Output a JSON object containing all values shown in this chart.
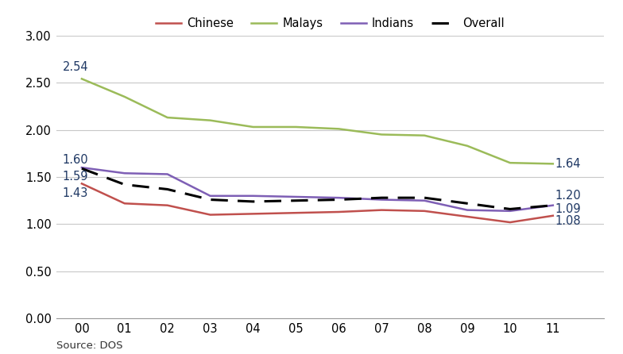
{
  "years": [
    0,
    1,
    2,
    3,
    4,
    5,
    6,
    7,
    8,
    9,
    10,
    11
  ],
  "year_labels": [
    "00",
    "01",
    "02",
    "03",
    "04",
    "05",
    "06",
    "07",
    "08",
    "09",
    "10",
    "11"
  ],
  "chinese": [
    1.43,
    1.22,
    1.2,
    1.1,
    1.11,
    1.12,
    1.13,
    1.15,
    1.14,
    1.08,
    1.02,
    1.09
  ],
  "malays": [
    2.54,
    2.35,
    2.13,
    2.1,
    2.03,
    2.03,
    2.01,
    1.95,
    1.94,
    1.83,
    1.65,
    1.64
  ],
  "indians": [
    1.6,
    1.54,
    1.53,
    1.3,
    1.3,
    1.29,
    1.28,
    1.26,
    1.25,
    1.15,
    1.14,
    1.2
  ],
  "overall": [
    1.59,
    1.42,
    1.37,
    1.26,
    1.24,
    1.25,
    1.26,
    1.28,
    1.28,
    1.22,
    1.16,
    1.2
  ],
  "colors": {
    "chinese": "#c0504d",
    "malays": "#9bbb59",
    "indians": "#7e5fb5",
    "overall": "#000000"
  },
  "annotation_color": "#1f3864",
  "ylim": [
    0.0,
    3.0
  ],
  "yticks": [
    0.0,
    0.5,
    1.0,
    1.5,
    2.0,
    2.5,
    3.0
  ],
  "source_text": "Source: DOS",
  "background_color": "#ffffff",
  "grid_color": "#c8c8c8"
}
